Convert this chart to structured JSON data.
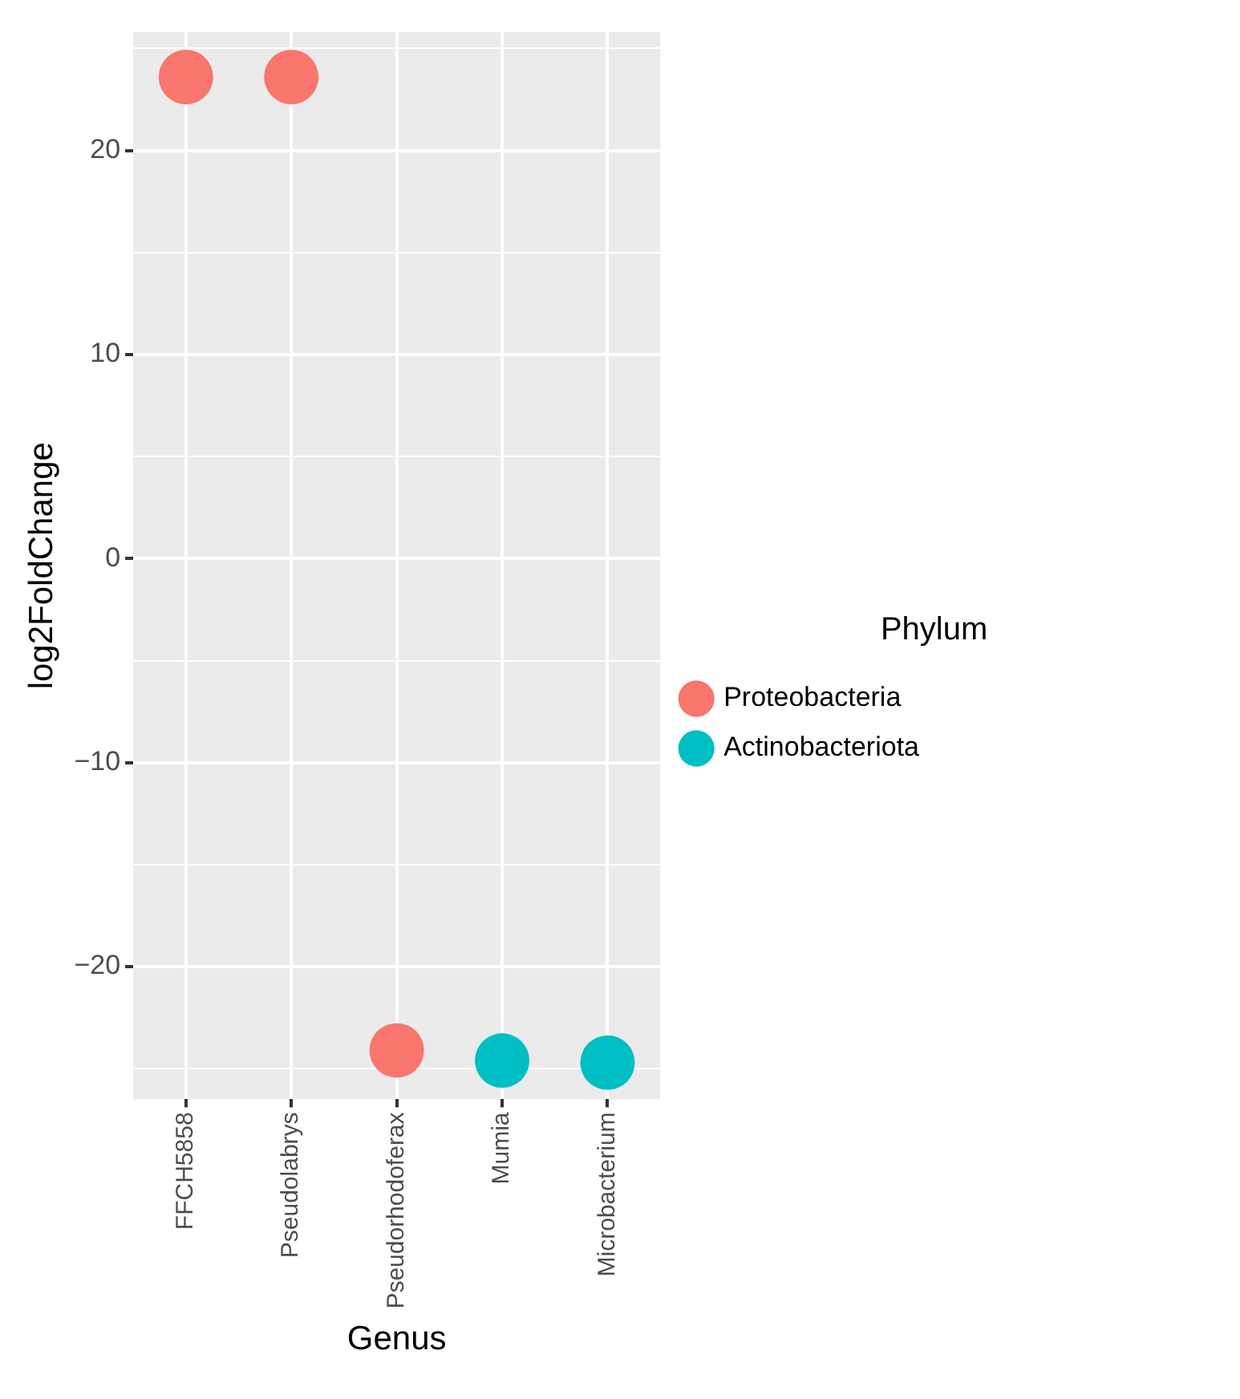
{
  "chart_data": {
    "type": "scatter",
    "xlabel": "Genus",
    "ylabel": "log2FoldChange",
    "legend_title": "Phylum",
    "legend": "right",
    "grid": true,
    "marker": "circle",
    "categories": [
      "FFCH5858",
      "Pseudolabrys",
      "Pseudorhodoferax",
      "Mumia",
      "Microbacterium"
    ],
    "ylim": [
      -26.5,
      25.8
    ],
    "yticks": [
      {
        "value": -25,
        "label": null
      },
      -20,
      {
        "value": -15,
        "label": null
      },
      -10,
      {
        "value": -5,
        "label": null
      },
      0,
      {
        "value": 5,
        "label": null
      },
      10,
      {
        "value": 15,
        "label": null
      },
      20,
      {
        "value": 25,
        "label": null
      }
    ],
    "series": [
      {
        "name": "Proteobacteria",
        "color": "#f8766d",
        "values": [
          23.6,
          23.6,
          -24.1,
          null,
          null
        ]
      },
      {
        "name": "Actinobacteriota",
        "color": "#00bfc4",
        "values": [
          null,
          null,
          null,
          -24.6,
          -24.7
        ]
      }
    ]
  }
}
